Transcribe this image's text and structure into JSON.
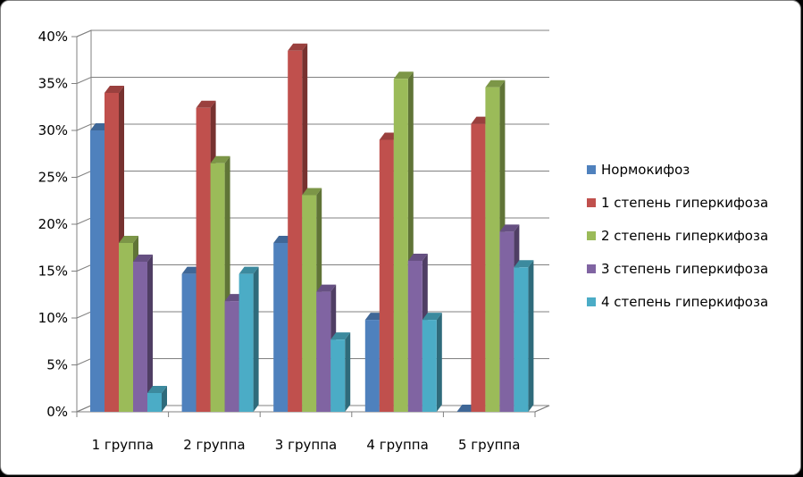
{
  "chart_data": {
    "type": "bar",
    "categories": [
      "1 группа",
      "2 группа",
      "3 группа",
      "4 группа",
      "5 группа"
    ],
    "series": [
      {
        "name": "Нормокифоз",
        "color": "#4f81bd",
        "values": [
          30,
          14.7,
          18,
          9.8,
          0
        ]
      },
      {
        "name": "1 степень гиперкифоза",
        "color": "#c0504d",
        "values": [
          34,
          32.4,
          38.5,
          29,
          30.7
        ]
      },
      {
        "name": "2 степень гиперкифоза",
        "color": "#9bbb59",
        "values": [
          18,
          26.5,
          23.1,
          35.5,
          34.6
        ]
      },
      {
        "name": "3 степень гиперкифоза",
        "color": "#8064a2",
        "values": [
          16,
          11.8,
          12.8,
          16.1,
          19.2
        ]
      },
      {
        "name": "4 степень гиперкифоза",
        "color": "#4bacc6",
        "values": [
          2,
          14.7,
          7.7,
          9.8,
          15.4
        ]
      }
    ],
    "ylim": [
      0,
      40
    ],
    "yticks": [
      "0%",
      "5%",
      "10%",
      "15%",
      "20%",
      "25%",
      "30%",
      "35%",
      "40%"
    ],
    "grid": true,
    "legend": "right",
    "title": "",
    "xlabel": "",
    "ylabel": ""
  }
}
